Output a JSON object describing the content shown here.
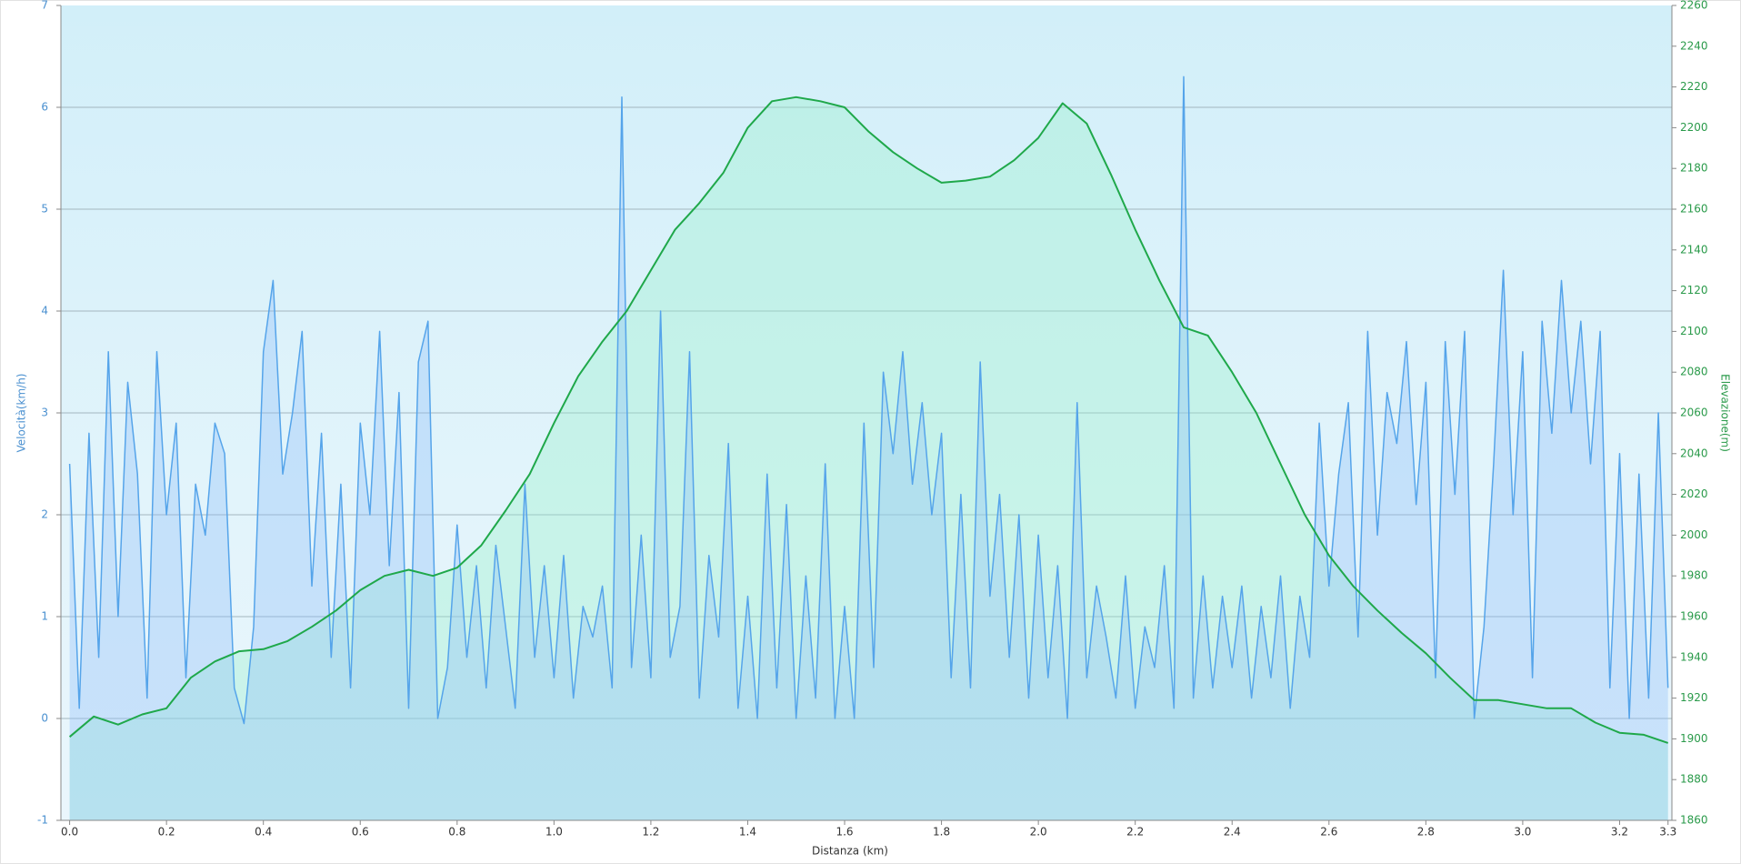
{
  "chart_data": {
    "type": "line",
    "x_label": "Distanza  (km)",
    "y_label": "Velocità(km/h)",
    "y2_label": "Elevazione(m)",
    "xlim": [
      -0.018,
      3.308
    ],
    "xticks": [
      {
        "value": 0,
        "label": "0.0"
      },
      0.2,
      0.4,
      0.6,
      0.8,
      {
        "value": 1,
        "label": "1.0"
      },
      1.2,
      1.4,
      1.6,
      1.8,
      {
        "value": 2,
        "label": "2.0"
      },
      2.2,
      2.4,
      2.6,
      2.8,
      {
        "value": 3,
        "label": "3.0"
      },
      3.2,
      3.3
    ],
    "ylim": [
      -1,
      7
    ],
    "yticks": [
      -1,
      0,
      1,
      2,
      3,
      4,
      5,
      6,
      7
    ],
    "y2lim": [
      1860,
      2260
    ],
    "y2ticks": [
      1860,
      1880,
      1900,
      1920,
      1940,
      1960,
      1980,
      2000,
      2020,
      2040,
      2060,
      2080,
      2100,
      2120,
      2140,
      2160,
      2180,
      2200,
      2220,
      2240,
      2260
    ],
    "grid": true,
    "series": [
      {
        "color": "#55a4ea",
        "axis": "y",
        "x": [
          0,
          0.02,
          0.04,
          0.06,
          0.08,
          0.1,
          0.12,
          0.14,
          0.16,
          0.18,
          0.2,
          0.22,
          0.24,
          0.26,
          0.28,
          0.3,
          0.32,
          0.34,
          0.36,
          0.38,
          0.4,
          0.42,
          0.44,
          0.46,
          0.48,
          0.5,
          0.52,
          0.54,
          0.56,
          0.58,
          0.6,
          0.62,
          0.64,
          0.66,
          0.68,
          0.7,
          0.72,
          0.74,
          0.76,
          0.78,
          0.8,
          0.82,
          0.84,
          0.86,
          0.88,
          0.9,
          0.92,
          0.94,
          0.96,
          0.98,
          1,
          1.02,
          1.04,
          1.06,
          1.08,
          1.1,
          1.12,
          1.14,
          1.16,
          1.18,
          1.2,
          1.22,
          1.24,
          1.26,
          1.28,
          1.3,
          1.32,
          1.34,
          1.36,
          1.38,
          1.4,
          1.42,
          1.44,
          1.46,
          1.48,
          1.5,
          1.52,
          1.54,
          1.56,
          1.58,
          1.6,
          1.62,
          1.64,
          1.66,
          1.68,
          1.7,
          1.72,
          1.74,
          1.76,
          1.78,
          1.8,
          1.82,
          1.84,
          1.86,
          1.88,
          1.9,
          1.92,
          1.94,
          1.96,
          1.98,
          2,
          2.02,
          2.04,
          2.06,
          2.08,
          2.1,
          2.12,
          2.14,
          2.16,
          2.18,
          2.2,
          2.22,
          2.24,
          2.26,
          2.28,
          2.3,
          2.32,
          2.34,
          2.36,
          2.38,
          2.4,
          2.42,
          2.44,
          2.46,
          2.48,
          2.5,
          2.52,
          2.54,
          2.56,
          2.58,
          2.6,
          2.62,
          2.64,
          2.66,
          2.68,
          2.7,
          2.72,
          2.74,
          2.76,
          2.78,
          2.8,
          2.82,
          2.84,
          2.86,
          2.88,
          2.9,
          2.92,
          2.94,
          2.96,
          2.98,
          3,
          3.02,
          3.04,
          3.06,
          3.08,
          3.1,
          3.12,
          3.14,
          3.16,
          3.18,
          3.2,
          3.22,
          3.24,
          3.26,
          3.28,
          3.3
        ],
        "values": [
          2.5,
          0.1,
          2.8,
          0.6,
          3.6,
          1.0,
          3.3,
          2.4,
          0.2,
          3.6,
          2.0,
          2.9,
          0.4,
          2.3,
          1.8,
          2.9,
          2.6,
          0.3,
          -0.05,
          0.9,
          3.6,
          4.3,
          2.4,
          3.0,
          3.8,
          1.3,
          2.8,
          0.6,
          2.3,
          0.3,
          2.9,
          2.0,
          3.8,
          1.5,
          3.2,
          0.1,
          3.5,
          3.9,
          0.0,
          0.5,
          1.9,
          0.6,
          1.5,
          0.3,
          1.7,
          0.9,
          0.1,
          2.3,
          0.6,
          1.5,
          0.4,
          1.6,
          0.2,
          1.1,
          0.8,
          1.3,
          0.3,
          6.1,
          0.5,
          1.8,
          0.4,
          4.0,
          0.6,
          1.1,
          3.6,
          0.2,
          1.6,
          0.8,
          2.7,
          0.1,
          1.2,
          0.0,
          2.4,
          0.3,
          2.1,
          0.0,
          1.4,
          0.2,
          2.5,
          0.0,
          1.1,
          0.0,
          2.9,
          0.5,
          3.4,
          2.6,
          3.6,
          2.3,
          3.1,
          2.0,
          2.8,
          0.4,
          2.2,
          0.3,
          3.5,
          1.2,
          2.2,
          0.6,
          2.0,
          0.2,
          1.8,
          0.4,
          1.5,
          0.0,
          3.1,
          0.4,
          1.3,
          0.8,
          0.2,
          1.4,
          0.1,
          0.9,
          0.5,
          1.5,
          0.1,
          6.3,
          0.2,
          1.4,
          0.3,
          1.2,
          0.5,
          1.3,
          0.2,
          1.1,
          0.4,
          1.4,
          0.1,
          1.2,
          0.6,
          2.9,
          1.3,
          2.4,
          3.1,
          0.8,
          3.8,
          1.8,
          3.2,
          2.7,
          3.7,
          2.1,
          3.3,
          0.4,
          3.7,
          2.2,
          3.8,
          0.0,
          0.9,
          2.5,
          4.4,
          2.0,
          3.6,
          0.4,
          3.9,
          2.8,
          4.3,
          3.0,
          3.9,
          2.5,
          3.8,
          0.3,
          2.6,
          0.0,
          2.4,
          0.2,
          3.0,
          0.3
        ]
      },
      {
        "color": "#1fa84a",
        "axis": "y2",
        "x": [
          0,
          0.05,
          0.1,
          0.15,
          0.2,
          0.25,
          0.3,
          0.35,
          0.4,
          0.45,
          0.5,
          0.55,
          0.6,
          0.65,
          0.7,
          0.75,
          0.8,
          0.85,
          0.9,
          0.95,
          1,
          1.05,
          1.1,
          1.15,
          1.2,
          1.25,
          1.3,
          1.35,
          1.4,
          1.45,
          1.5,
          1.55,
          1.6,
          1.65,
          1.7,
          1.75,
          1.8,
          1.85,
          1.9,
          1.95,
          2,
          2.05,
          2.1,
          2.15,
          2.2,
          2.25,
          2.3,
          2.35,
          2.4,
          2.45,
          2.5,
          2.55,
          2.6,
          2.65,
          2.7,
          2.75,
          2.8,
          2.85,
          2.9,
          2.95,
          3,
          3.05,
          3.1,
          3.15,
          3.2,
          3.25,
          3.3
        ],
        "values": [
          1901,
          1911,
          1907,
          1912,
          1915,
          1930,
          1938,
          1943,
          1944,
          1948,
          1955,
          1963,
          1973,
          1980,
          1983,
          1980,
          1984,
          1995,
          2012,
          2030,
          2055,
          2078,
          2095,
          2110,
          2130,
          2150,
          2163,
          2178,
          2200,
          2213,
          2215,
          2213,
          2210,
          2198,
          2188,
          2180,
          2173,
          2174,
          2176,
          2184,
          2195,
          2212,
          2202,
          2177,
          2150,
          2125,
          2102,
          2098,
          2080,
          2060,
          2035,
          2010,
          1990,
          1975,
          1963,
          1952,
          1942,
          1930,
          1919,
          1919,
          1917,
          1915,
          1915,
          1908,
          1903,
          1902,
          1898
        ]
      }
    ]
  }
}
